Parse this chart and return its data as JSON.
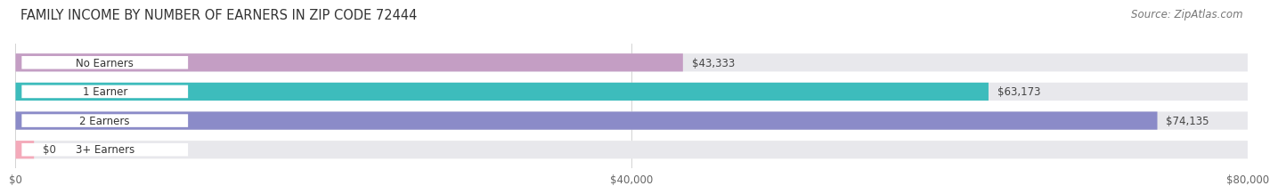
{
  "title": "FAMILY INCOME BY NUMBER OF EARNERS IN ZIP CODE 72444",
  "source": "Source: ZipAtlas.com",
  "categories": [
    "No Earners",
    "1 Earner",
    "2 Earners",
    "3+ Earners"
  ],
  "values": [
    43333,
    63173,
    74135,
    0
  ],
  "bar_colors": [
    "#c49ec4",
    "#3dbcbc",
    "#8b8bc8",
    "#f4aaba"
  ],
  "value_label_colors": [
    "#555555",
    "#ffffff",
    "#ffffff",
    "#555555"
  ],
  "xlim": [
    0,
    80000
  ],
  "xtick_labels": [
    "$0",
    "$40,000",
    "$80,000"
  ],
  "xtick_values": [
    0,
    40000,
    80000
  ],
  "bg_color": "#ffffff",
  "bar_bg_color": "#e8e8ec",
  "title_fontsize": 10.5,
  "source_fontsize": 8.5,
  "bar_height": 0.62,
  "value_labels": [
    "$43,333",
    "$63,173",
    "$74,135",
    "$0"
  ],
  "small_val_for_zero": 1200
}
